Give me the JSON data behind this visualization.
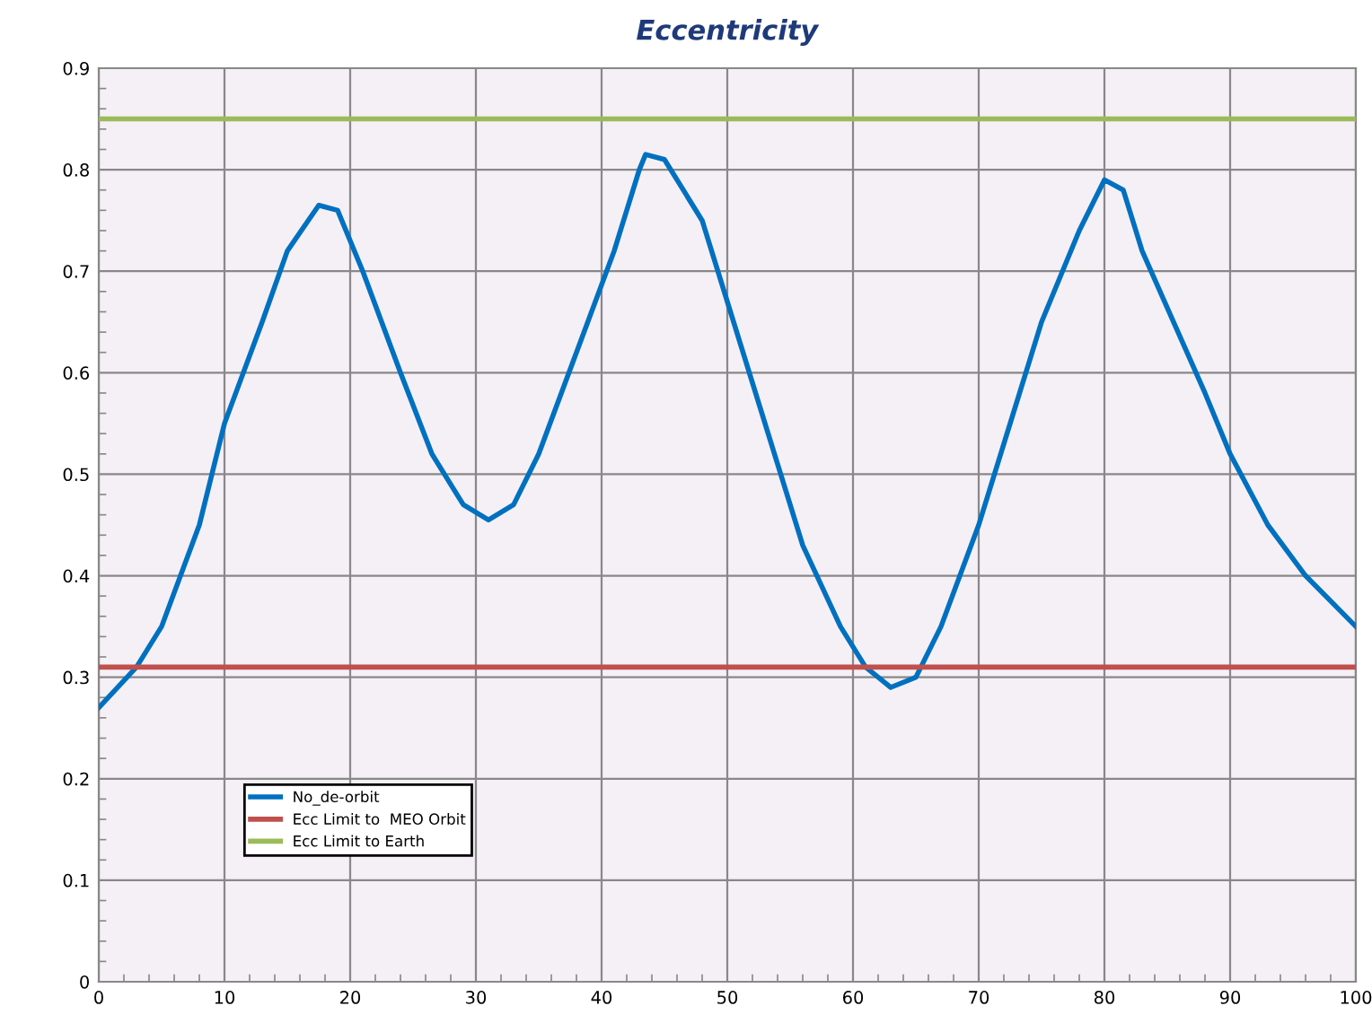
{
  "chart_data": {
    "type": "line",
    "title": "Eccentricity",
    "xlim": [
      0,
      100
    ],
    "xticks": [
      0,
      10,
      20,
      30,
      40,
      50,
      60,
      70,
      80,
      90,
      100
    ],
    "ylim": [
      0,
      0.9
    ],
    "yticks": [
      0,
      0.1,
      0.2,
      0.3,
      0.4,
      0.5,
      0.6,
      0.7,
      0.8,
      0.9
    ],
    "grid": true,
    "legend": "bottom left",
    "marker": "none",
    "line_style": "solid",
    "series": [
      {
        "name": "No_de-orbit",
        "color": "#0070c0",
        "x": [
          0,
          3,
          5,
          8,
          10,
          13,
          15,
          17.5,
          19,
          21,
          24,
          26.5,
          29,
          31,
          33,
          35,
          38,
          41,
          43,
          43.5,
          45,
          48,
          50,
          53,
          56,
          59,
          61,
          63,
          65,
          67,
          70,
          72.5,
          75,
          78,
          80,
          81.5,
          83,
          85.5,
          88,
          90,
          93,
          96,
          100
        ],
        "values": [
          0.27,
          0.31,
          0.35,
          0.45,
          0.55,
          0.65,
          0.72,
          0.765,
          0.76,
          0.7,
          0.6,
          0.52,
          0.47,
          0.455,
          0.47,
          0.52,
          0.62,
          0.72,
          0.8,
          0.815,
          0.81,
          0.75,
          0.67,
          0.55,
          0.43,
          0.35,
          0.31,
          0.29,
          0.3,
          0.35,
          0.45,
          0.55,
          0.65,
          0.74,
          0.79,
          0.78,
          0.72,
          0.65,
          0.58,
          0.52,
          0.45,
          0.4,
          0.35
        ]
      },
      {
        "name": "Ecc Limit to  MEO Orbit",
        "color": "#c0504d",
        "x": [
          0,
          100
        ],
        "values": [
          0.31,
          0.31
        ]
      },
      {
        "name": "Ecc Limit to Earth",
        "color": "#9bbb59",
        "x": [
          0,
          100
        ],
        "values": [
          0.85,
          0.85
        ]
      }
    ]
  }
}
